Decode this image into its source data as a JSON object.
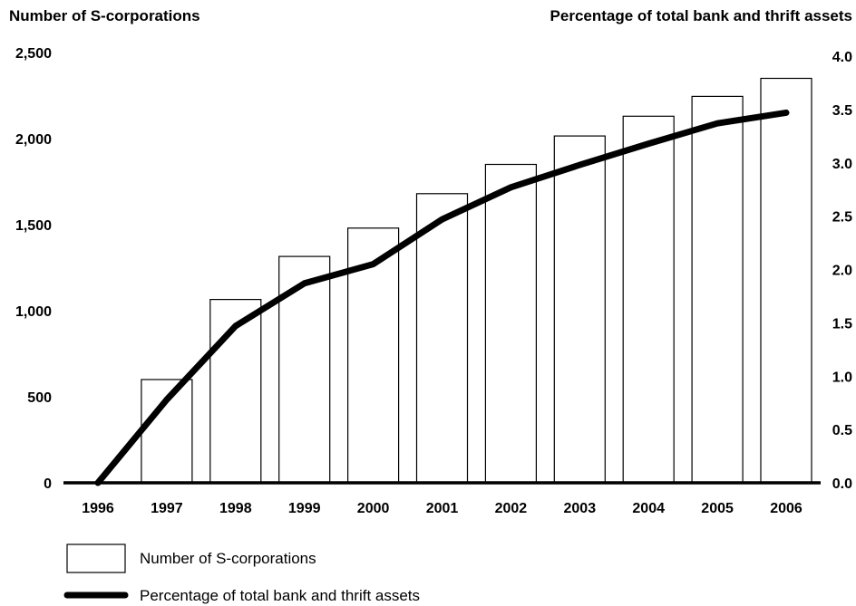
{
  "chart_data": {
    "type": "bar",
    "title": "",
    "left_axis_title": "Number of S-corporations",
    "right_axis_title": "Percentage of total bank and thrift assets",
    "categories": [
      "1996",
      "1997",
      "1998",
      "1999",
      "2000",
      "2001",
      "2002",
      "2003",
      "2004",
      "2005",
      "2006"
    ],
    "ylim_left": [
      0,
      2500
    ],
    "yticks_left": [
      "0",
      "500",
      "1,000",
      "1,500",
      "2,000",
      "2,500"
    ],
    "yticks_left_values": [
      0,
      500,
      1000,
      1500,
      2000,
      2500
    ],
    "ylim_right": [
      0,
      4.0
    ],
    "yticks_right": [
      "0.0",
      "0.5",
      "1.0",
      "1.5",
      "2.0",
      "2.5",
      "3.0",
      "3.5",
      "4.0"
    ],
    "yticks_right_values": [
      0,
      0.5,
      1.0,
      1.5,
      2.0,
      2.5,
      3.0,
      3.5,
      4.0
    ],
    "series": [
      {
        "name": "Number of S-corporations",
        "type": "bar",
        "axis": "left",
        "values": [
          0,
          600,
          1065,
          1315,
          1480,
          1680,
          1850,
          2015,
          2130,
          2245,
          2350
        ]
      },
      {
        "name": "Percentage of total bank and thrift assets",
        "type": "line",
        "axis": "right",
        "values": [
          0,
          0.78,
          1.47,
          1.87,
          2.05,
          2.47,
          2.77,
          2.98,
          3.18,
          3.37,
          3.47
        ]
      }
    ],
    "grid": false,
    "legend_position": "bottom-left"
  },
  "legend": {
    "bar_label": "Number of S-corporations",
    "line_label": "Percentage of total bank and thrift assets"
  }
}
